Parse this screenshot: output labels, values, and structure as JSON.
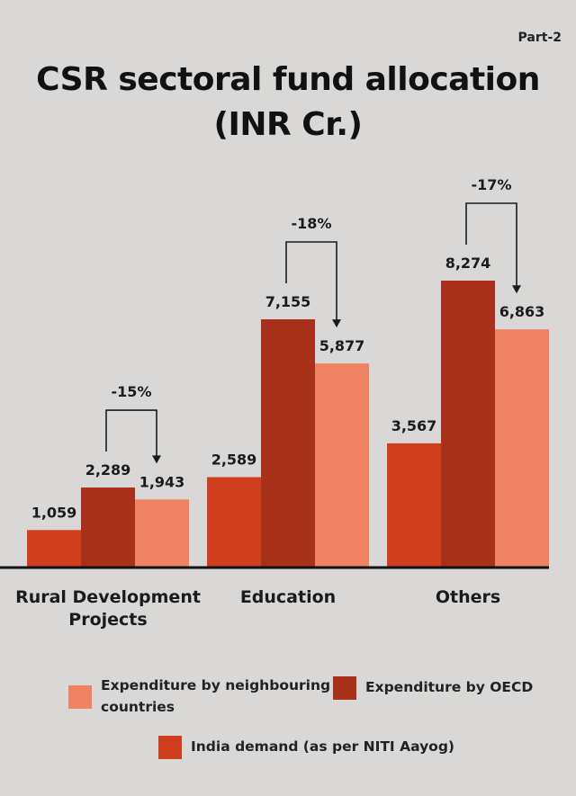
{
  "page_label": "Part-2",
  "title_line1": "CSR sectoral fund allocation",
  "title_line2": "(INR Cr.)",
  "chart_data": {
    "type": "bar",
    "categories": [
      "Rural Development Projects",
      "Education",
      "Others"
    ],
    "category_lines": [
      [
        "Rural Development",
        "Projects"
      ],
      [
        "Education"
      ],
      [
        "Others"
      ]
    ],
    "series": [
      {
        "name": "India demand (as per NITI Aayog)",
        "color": "#cf3f1e",
        "values": [
          1059,
          2589,
          3567
        ],
        "labels": [
          "1,059",
          "2,589",
          "3,567"
        ]
      },
      {
        "name": "Expenditure by OECD",
        "color": "#a8311a",
        "values": [
          2289,
          7155,
          8274
        ],
        "labels": [
          "2,289",
          "7,155",
          "8,274"
        ]
      },
      {
        "name": "Expenditure by neighbouring countries",
        "color": "#ef8262",
        "values": [
          1943,
          5877,
          6863
        ],
        "labels": [
          "1,943",
          "5,877",
          "6,863"
        ]
      }
    ],
    "annotations": [
      "-15%",
      "-18%",
      "-17%"
    ],
    "ylim": [
      0,
      8274
    ],
    "grid": false,
    "legend_position": "bottom"
  },
  "legend": {
    "neighbouring_line1": "Expenditure by neighbouring",
    "neighbouring_line2": "countries",
    "oecd": "Expenditure by OECD",
    "india": "India demand (as per NITI Aayog)"
  }
}
